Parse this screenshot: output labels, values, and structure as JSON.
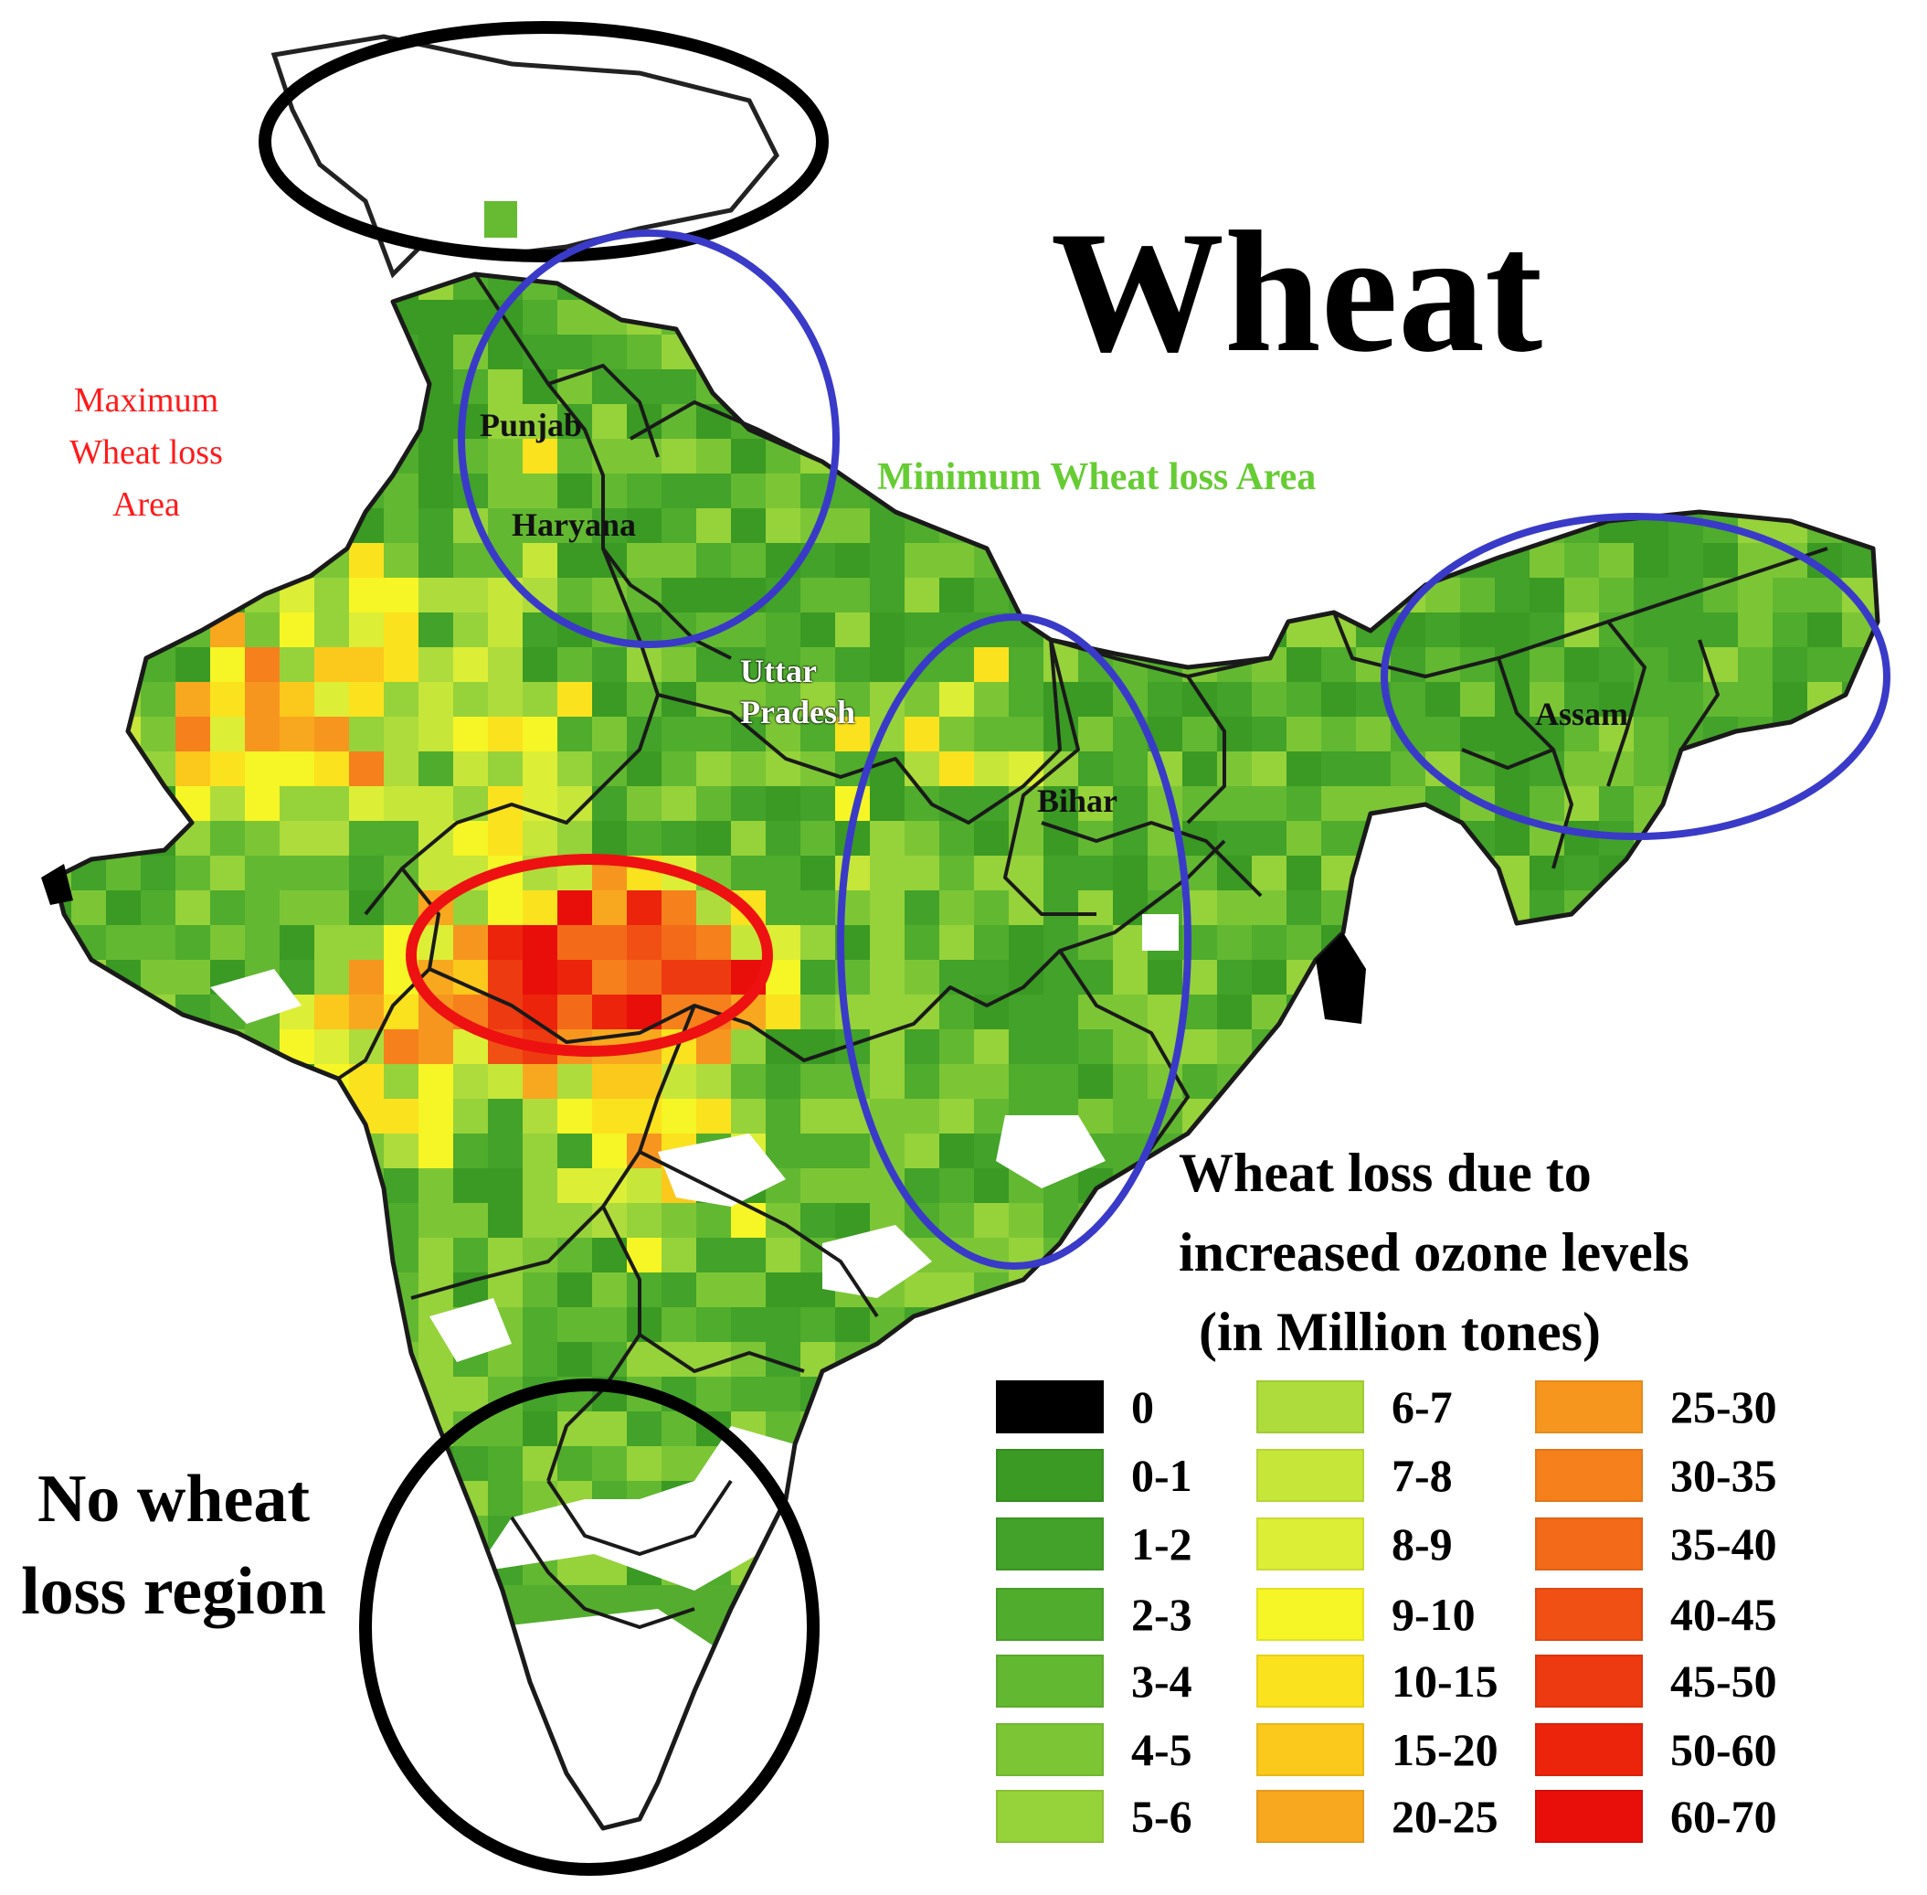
{
  "title": "Wheat",
  "annotations": {
    "max_loss": "Maximum Wheat loss Area",
    "min_loss": "Minimum Wheat loss Area",
    "no_loss": "No wheat loss region"
  },
  "states": {
    "punjab": "Punjab",
    "haryana": "Haryana",
    "uttar_pradesh": "Uttar Pradesh",
    "bihar": "Bihar",
    "assam": "Assam"
  },
  "legend": {
    "title_lines": [
      "Wheat loss due to",
      "increased ozone levels",
      "(in Million tones)"
    ],
    "items": [
      {
        "label": "0",
        "color": "#000000"
      },
      {
        "label": "0-1",
        "color": "#3a9a23"
      },
      {
        "label": "1-2",
        "color": "#42a229"
      },
      {
        "label": "2-3",
        "color": "#4fac2c"
      },
      {
        "label": "3-4",
        "color": "#63b832"
      },
      {
        "label": "4-5",
        "color": "#7cc636"
      },
      {
        "label": "5-6",
        "color": "#96d23a"
      },
      {
        "label": "6-7",
        "color": "#aedc3c"
      },
      {
        "label": "7-8",
        "color": "#c6e63a"
      },
      {
        "label": "8-9",
        "color": "#dcee36"
      },
      {
        "label": "9-10",
        "color": "#f6f526"
      },
      {
        "label": "10-15",
        "color": "#fbe21e"
      },
      {
        "label": "15-20",
        "color": "#fbc81c"
      },
      {
        "label": "20-25",
        "color": "#f8a81e"
      },
      {
        "label": "25-30",
        "color": "#f7961f"
      },
      {
        "label": "30-35",
        "color": "#f5801c"
      },
      {
        "label": "35-40",
        "color": "#f36a18"
      },
      {
        "label": "40-45",
        "color": "#f05014"
      },
      {
        "label": "45-50",
        "color": "#ee3a10"
      },
      {
        "label": "50-60",
        "color": "#ec240c"
      },
      {
        "label": "60-70",
        "color": "#e80e0a"
      }
    ]
  }
}
